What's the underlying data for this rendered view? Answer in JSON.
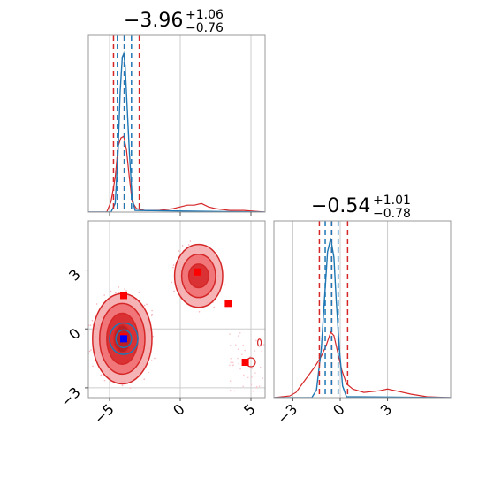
{
  "chart_data": {
    "type": "corner",
    "parameters": [
      {
        "title_value": "−3.96",
        "title_plus": "+1.06",
        "title_minus": "−0.76"
      },
      {
        "title_value": "−0.54",
        "title_plus": "+1.01",
        "title_minus": "−0.78"
      }
    ],
    "colors": {
      "red": "#d62728",
      "blue": "#1f77b4",
      "red_fill_light": "#f4a6a8",
      "red_fill_mid": "#ee6b6f",
      "red_fill_dark": "#d62728",
      "marker_red": "#ff0000",
      "marker_blue": "#0000ff"
    },
    "grid": true,
    "x_axis_param1": {
      "range": [
        -6.5,
        6.0
      ],
      "ticks": [
        -5,
        0,
        5
      ],
      "tick_labels": [
        "−5",
        "0",
        "5"
      ]
    },
    "y_axis_param2": {
      "range": [
        -3.5,
        5.5
      ],
      "ticks": [
        -3,
        0,
        3
      ],
      "tick_labels": [
        "−3",
        "0",
        "3"
      ]
    },
    "x_axis_param2": {
      "range": [
        -4.2,
        7.0
      ],
      "ticks": [
        -3,
        0,
        3
      ],
      "tick_labels": [
        "−3",
        "0",
        "3"
      ]
    },
    "hist1": {
      "red_quantile_lines": [
        -4.72,
        -3.96,
        -2.9
      ],
      "blue_quantile_lines": [
        -4.45,
        -3.96,
        -3.45
      ],
      "red_curve": [
        [
          -6.5,
          0
        ],
        [
          -5.2,
          0
        ],
        [
          -4.9,
          0.06
        ],
        [
          -4.6,
          0.2
        ],
        [
          -4.4,
          0.38
        ],
        [
          -4.2,
          0.43
        ],
        [
          -4.0,
          0.44
        ],
        [
          -3.8,
          0.36
        ],
        [
          -3.6,
          0.2
        ],
        [
          -3.4,
          0.06
        ],
        [
          -3.1,
          0.02
        ],
        [
          -2.5,
          0.01
        ],
        [
          -1.5,
          0.01
        ],
        [
          -0.5,
          0.02
        ],
        [
          0,
          0.03
        ],
        [
          0.5,
          0.04
        ],
        [
          1.0,
          0.04
        ],
        [
          1.5,
          0.05
        ],
        [
          2.0,
          0.03
        ],
        [
          2.5,
          0.02
        ],
        [
          3.5,
          0.01
        ],
        [
          4.5,
          0.01
        ],
        [
          6.0,
          0
        ]
      ],
      "blue_curve": [
        [
          -6.5,
          0
        ],
        [
          -4.9,
          0
        ],
        [
          -4.6,
          0.05
        ],
        [
          -4.4,
          0.35
        ],
        [
          -4.25,
          0.7
        ],
        [
          -4.1,
          0.9
        ],
        [
          -4.0,
          0.92
        ],
        [
          -3.9,
          0.85
        ],
        [
          -3.75,
          0.6
        ],
        [
          -3.6,
          0.35
        ],
        [
          -3.4,
          0.08
        ],
        [
          -3.2,
          0.01
        ],
        [
          6.0,
          0
        ]
      ]
    },
    "hist2": {
      "red_quantile_lines": [
        -1.32,
        -0.54,
        0.47
      ],
      "blue_quantile_lines": [
        -0.95,
        -0.54,
        -0.13
      ],
      "red_curve": [
        [
          -4.2,
          0
        ],
        [
          -3.2,
          0.01
        ],
        [
          -2.8,
          0.03
        ],
        [
          -2.4,
          0.08
        ],
        [
          -2.0,
          0.13
        ],
        [
          -1.6,
          0.18
        ],
        [
          -1.2,
          0.24
        ],
        [
          -0.9,
          0.3
        ],
        [
          -0.6,
          0.38
        ],
        [
          -0.4,
          0.36
        ],
        [
          -0.2,
          0.28
        ],
        [
          0.1,
          0.16
        ],
        [
          0.4,
          0.08
        ],
        [
          0.8,
          0.05
        ],
        [
          1.5,
          0.03
        ],
        [
          2.5,
          0.04
        ],
        [
          3.0,
          0.05
        ],
        [
          3.5,
          0.04
        ],
        [
          4.5,
          0.02
        ],
        [
          5.5,
          0.005
        ],
        [
          7.0,
          0
        ]
      ],
      "blue_curve": [
        [
          -4.2,
          0
        ],
        [
          -1.8,
          0
        ],
        [
          -1.5,
          0.04
        ],
        [
          -1.2,
          0.25
        ],
        [
          -1.0,
          0.5
        ],
        [
          -0.8,
          0.75
        ],
        [
          -0.6,
          0.82
        ],
        [
          -0.4,
          0.72
        ],
        [
          -0.25,
          0.5
        ],
        [
          -0.05,
          0.25
        ],
        [
          0.15,
          0.06
        ],
        [
          0.4,
          0.005
        ],
        [
          7.0,
          0
        ]
      ]
    },
    "scatter": {
      "red_markers": [
        [
          -4.0,
          1.7
        ],
        [
          1.2,
          2.9
        ],
        [
          3.4,
          1.3
        ],
        [
          4.6,
          -1.7
        ],
        [
          -4.0,
          -0.4
        ]
      ],
      "blue_markers": [
        [
          -4.0,
          -0.5
        ]
      ],
      "red_blobs": [
        {
          "cx": -4.1,
          "cy": -0.5,
          "rx": [
            2.1,
            1.6,
            1.1,
            0.6
          ],
          "ry": [
            2.3,
            1.8,
            1.3,
            0.7
          ]
        },
        {
          "cx": 1.3,
          "cy": 2.7,
          "rx": [
            1.7,
            1.2,
            0.7
          ],
          "ry": [
            1.6,
            1.1,
            0.6
          ]
        }
      ],
      "blue_blob": {
        "cx": -4.0,
        "cy": -0.5,
        "rx": [
          1.0,
          0.55
        ],
        "ry": [
          0.8,
          0.45
        ]
      }
    }
  }
}
